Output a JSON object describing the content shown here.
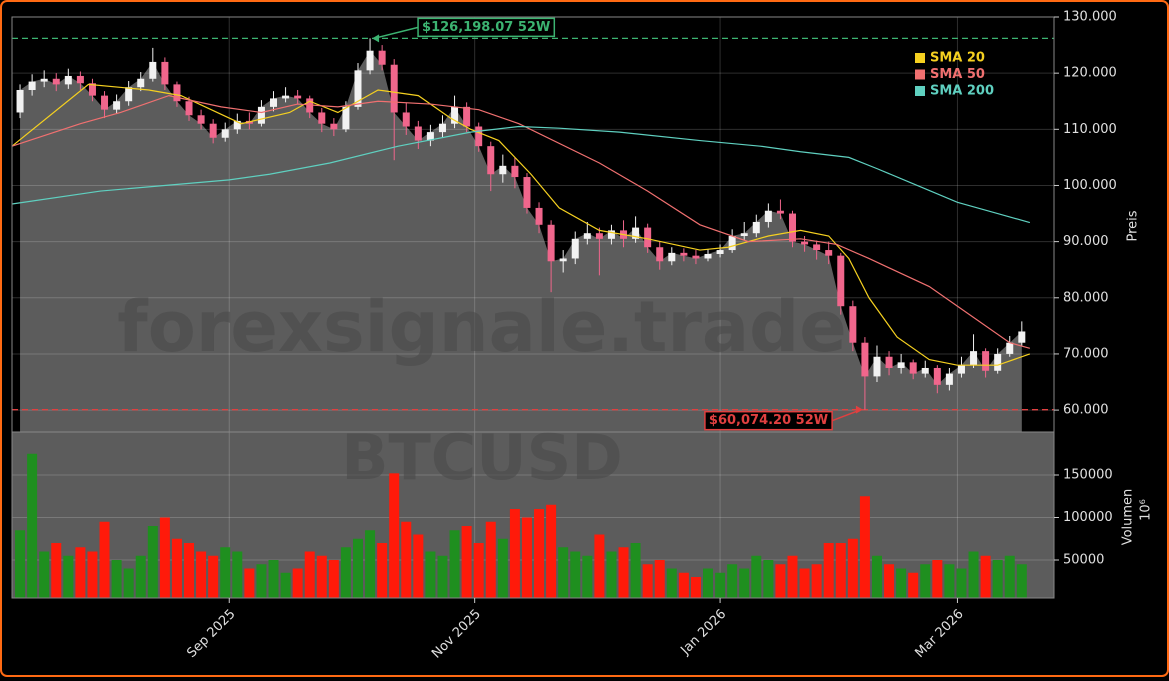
{
  "chart_data": {
    "type": "candlestick",
    "watermark": "forexsignale.trade",
    "symbol": "BTCUSD",
    "x": [
      191,
      194,
      197,
      200,
      203,
      206,
      209,
      212,
      215,
      218,
      221,
      224,
      227,
      230,
      233,
      236,
      239,
      242,
      245,
      248,
      251,
      254,
      257,
      260,
      263,
      266,
      269,
      272,
      275,
      278,
      281,
      284,
      287,
      290,
      293,
      296,
      299,
      302,
      305,
      308,
      311,
      314,
      317,
      320,
      323,
      326,
      329,
      332,
      335,
      338,
      341,
      344,
      347,
      350,
      353,
      356,
      359,
      362,
      365,
      368,
      371,
      374,
      377,
      380,
      383,
      386,
      389,
      392,
      395,
      398,
      401,
      404,
      407,
      410,
      413,
      416,
      419,
      422,
      425,
      428,
      431,
      434,
      437,
      440
    ],
    "open": [
      113000,
      117000,
      118500,
      119000,
      118000,
      119500,
      118200,
      116000,
      113500,
      115000,
      117500,
      119000,
      122000,
      118000,
      115000,
      112500,
      111000,
      108500,
      110000,
      111500,
      111000,
      114000,
      115500,
      116000,
      115500,
      113000,
      111000,
      110000,
      114000,
      120500,
      124000,
      121500,
      113000,
      110500,
      108000,
      109500,
      111000,
      114000,
      110500,
      107000,
      102000,
      103500,
      101500,
      96000,
      93000,
      86500,
      87000,
      90500,
      91500,
      90500,
      92000,
      90500,
      92500,
      89000,
      86500,
      88000,
      87500,
      87000,
      87800,
      88500,
      91000,
      91500,
      93500,
      95500,
      95000,
      90000,
      89500,
      88500,
      87500,
      78500,
      72000,
      66000,
      69500,
      67500,
      68500,
      66500,
      67500,
      64500,
      66500,
      68000,
      70500,
      67000,
      70000,
      72000
    ],
    "high": [
      118000,
      119800,
      120500,
      120000,
      120800,
      120300,
      119000,
      116800,
      116200,
      118600,
      120200,
      124500,
      122800,
      118500,
      115800,
      113500,
      111800,
      111200,
      112800,
      113000,
      115200,
      116800,
      117500,
      117000,
      116000,
      113800,
      112000,
      115000,
      121800,
      126198.07,
      125000,
      122500,
      114800,
      111500,
      110800,
      112500,
      116000,
      114800,
      111200,
      107800,
      105500,
      105000,
      102200,
      97000,
      93800,
      88500,
      91800,
      93500,
      92500,
      93000,
      93800,
      94500,
      93200,
      90000,
      89000,
      88800,
      88500,
      88600,
      89500,
      92200,
      93500,
      94800,
      96800,
      97500,
      95500,
      91000,
      90200,
      90000,
      88000,
      79500,
      73000,
      71500,
      70500,
      70000,
      69000,
      68800,
      68000,
      67500,
      69500,
      73500,
      71000,
      71000,
      73200,
      75800
    ],
    "low": [
      112000,
      116000,
      117500,
      116800,
      117200,
      117000,
      115000,
      112000,
      112800,
      114200,
      116800,
      118500,
      117000,
      114000,
      111500,
      110000,
      107500,
      107800,
      109200,
      110000,
      110500,
      113200,
      114800,
      114500,
      112000,
      109500,
      108800,
      109500,
      113500,
      119800,
      120500,
      104500,
      109000,
      106500,
      107000,
      108500,
      110200,
      109500,
      106000,
      99000,
      100500,
      99500,
      95000,
      91500,
      81000,
      84500,
      86000,
      89500,
      84000,
      89500,
      89000,
      89800,
      88000,
      85000,
      85800,
      86500,
      86000,
      86500,
      87200,
      88000,
      90200,
      90800,
      92500,
      94000,
      89000,
      88200,
      86800,
      86000,
      77000,
      70500,
      60074.2,
      65000,
      66200,
      66500,
      65500,
      65800,
      63000,
      63500,
      65800,
      67500,
      65800,
      66500,
      69500,
      71500
    ],
    "close": [
      117000,
      118500,
      119000,
      118000,
      119500,
      118200,
      116000,
      113500,
      115000,
      117500,
      119000,
      122000,
      118000,
      115000,
      112500,
      111000,
      108500,
      110000,
      111500,
      111000,
      114000,
      115500,
      116000,
      115500,
      113000,
      111000,
      110000,
      114000,
      120500,
      124000,
      121500,
      113000,
      110500,
      108000,
      109500,
      111000,
      114000,
      110500,
      107000,
      102000,
      103500,
      101500,
      96000,
      93000,
      86500,
      87000,
      90500,
      91500,
      90500,
      92000,
      90500,
      92500,
      89000,
      86500,
      88000,
      87500,
      87000,
      87800,
      88500,
      91000,
      91500,
      93500,
      95500,
      95000,
      90000,
      89500,
      88500,
      87500,
      78500,
      72000,
      66000,
      69500,
      67500,
      68500,
      66500,
      67500,
      64500,
      66500,
      68000,
      70500,
      67000,
      70000,
      72000,
      74000
    ],
    "volume": [
      85000,
      175000,
      60000,
      70000,
      55000,
      65000,
      60000,
      95000,
      50000,
      40000,
      55000,
      90000,
      100000,
      75000,
      70000,
      60000,
      55000,
      65000,
      60000,
      40000,
      45000,
      50000,
      35000,
      40000,
      60000,
      55000,
      50000,
      65000,
      75000,
      85000,
      70000,
      152000,
      95000,
      80000,
      60000,
      55000,
      85000,
      90000,
      70000,
      95000,
      75000,
      110000,
      100000,
      110000,
      115000,
      65000,
      60000,
      55000,
      80000,
      60000,
      65000,
      70000,
      45000,
      50000,
      40000,
      35000,
      30000,
      40000,
      35000,
      45000,
      40000,
      55000,
      50000,
      45000,
      55000,
      40000,
      45000,
      70000,
      70000,
      75000,
      125000,
      55000,
      45000,
      40000,
      35000,
      45000,
      50000,
      45000,
      40000,
      60000,
      55000,
      50000,
      55000,
      45000
    ],
    "up_color": "#f2f2f2",
    "down_color": "#f0668c",
    "volume_up_color": "#1f8f1f",
    "volume_down_color": "#ff1a0a",
    "area_color": "#5c5c5c",
    "series": [
      {
        "name": "SMA 20",
        "color": "#f5d020",
        "x": [
          189,
          208,
          223,
          231,
          246,
          258,
          263,
          270,
          280,
          290,
          298,
          303,
          310,
          318,
          325,
          335,
          347,
          360,
          367,
          377,
          385,
          392,
          397,
          402,
          409,
          417,
          424,
          434,
          442
        ],
        "values": [
          107000,
          118000,
          117000,
          116000,
          111000,
          113000,
          115000,
          113000,
          117000,
          116000,
          112000,
          110000,
          108000,
          102000,
          96000,
          92000,
          90500,
          88500,
          89000,
          91000,
          92000,
          91000,
          87000,
          80000,
          73000,
          69000,
          68000,
          68000,
          70000
        ]
      },
      {
        "name": "SMA 50",
        "color": "#f07070",
        "x": [
          189,
          206,
          216,
          228,
          241,
          251,
          260,
          270,
          280,
          293,
          305,
          315,
          335,
          347,
          360,
          372,
          385,
          394,
          402,
          417,
          427,
          437,
          442
        ],
        "values": [
          107000,
          111000,
          113000,
          116000,
          114000,
          113000,
          114500,
          114000,
          115000,
          114500,
          113500,
          111000,
          104000,
          99000,
          93000,
          90000,
          90500,
          89500,
          87000,
          82000,
          77000,
          72000,
          71000
        ]
      },
      {
        "name": "SMA 200",
        "color": "#5fd0c0",
        "x": [
          189,
          211,
          243,
          253,
          268,
          285,
          303,
          315,
          325,
          340,
          360,
          375,
          385,
          397,
          404,
          414,
          424,
          434,
          442
        ],
        "values": [
          96700,
          99000,
          101000,
          102000,
          104000,
          107000,
          109500,
          110500,
          110200,
          109500,
          108000,
          107000,
          106000,
          105000,
          103000,
          100000,
          97000,
          95000,
          93400
        ]
      }
    ],
    "hlines": [
      {
        "value": 126198.07,
        "x": 278,
        "color": "#3cb371",
        "label": "$126,198.07 52W"
      },
      {
        "value": 60074.2,
        "x": 401,
        "color": "#e04040",
        "label": "$60,074.20 52W"
      }
    ],
    "xlim": [
      189,
      448
    ],
    "xticks": [
      {
        "value": 243,
        "label": "Sep 2025"
      },
      {
        "value": 304,
        "label": "Nov 2025"
      },
      {
        "value": 365,
        "label": "Jan 2026"
      },
      {
        "value": 424,
        "label": "Mar 2026"
      }
    ],
    "ylim": [
      56100,
      130000
    ],
    "yticks": [
      {
        "value": 60000,
        "label": "60.000"
      },
      {
        "value": 70000,
        "label": "70.000"
      },
      {
        "value": 80000,
        "label": "80.000"
      },
      {
        "value": 90000,
        "label": "90.000"
      },
      {
        "value": 100000,
        "label": "100.000"
      },
      {
        "value": 110000,
        "label": "110.000"
      },
      {
        "value": 120000,
        "label": "120.000"
      },
      {
        "value": 130000,
        "label": "130.000"
      }
    ],
    "ylabel": "Preis",
    "y2lim": [
      5300,
      200600
    ],
    "y2ticks": [
      50000,
      100000,
      150000
    ],
    "y2label": "Volumen",
    "y2_offset": "10⁶",
    "grid": true,
    "legend": "upper right"
  }
}
